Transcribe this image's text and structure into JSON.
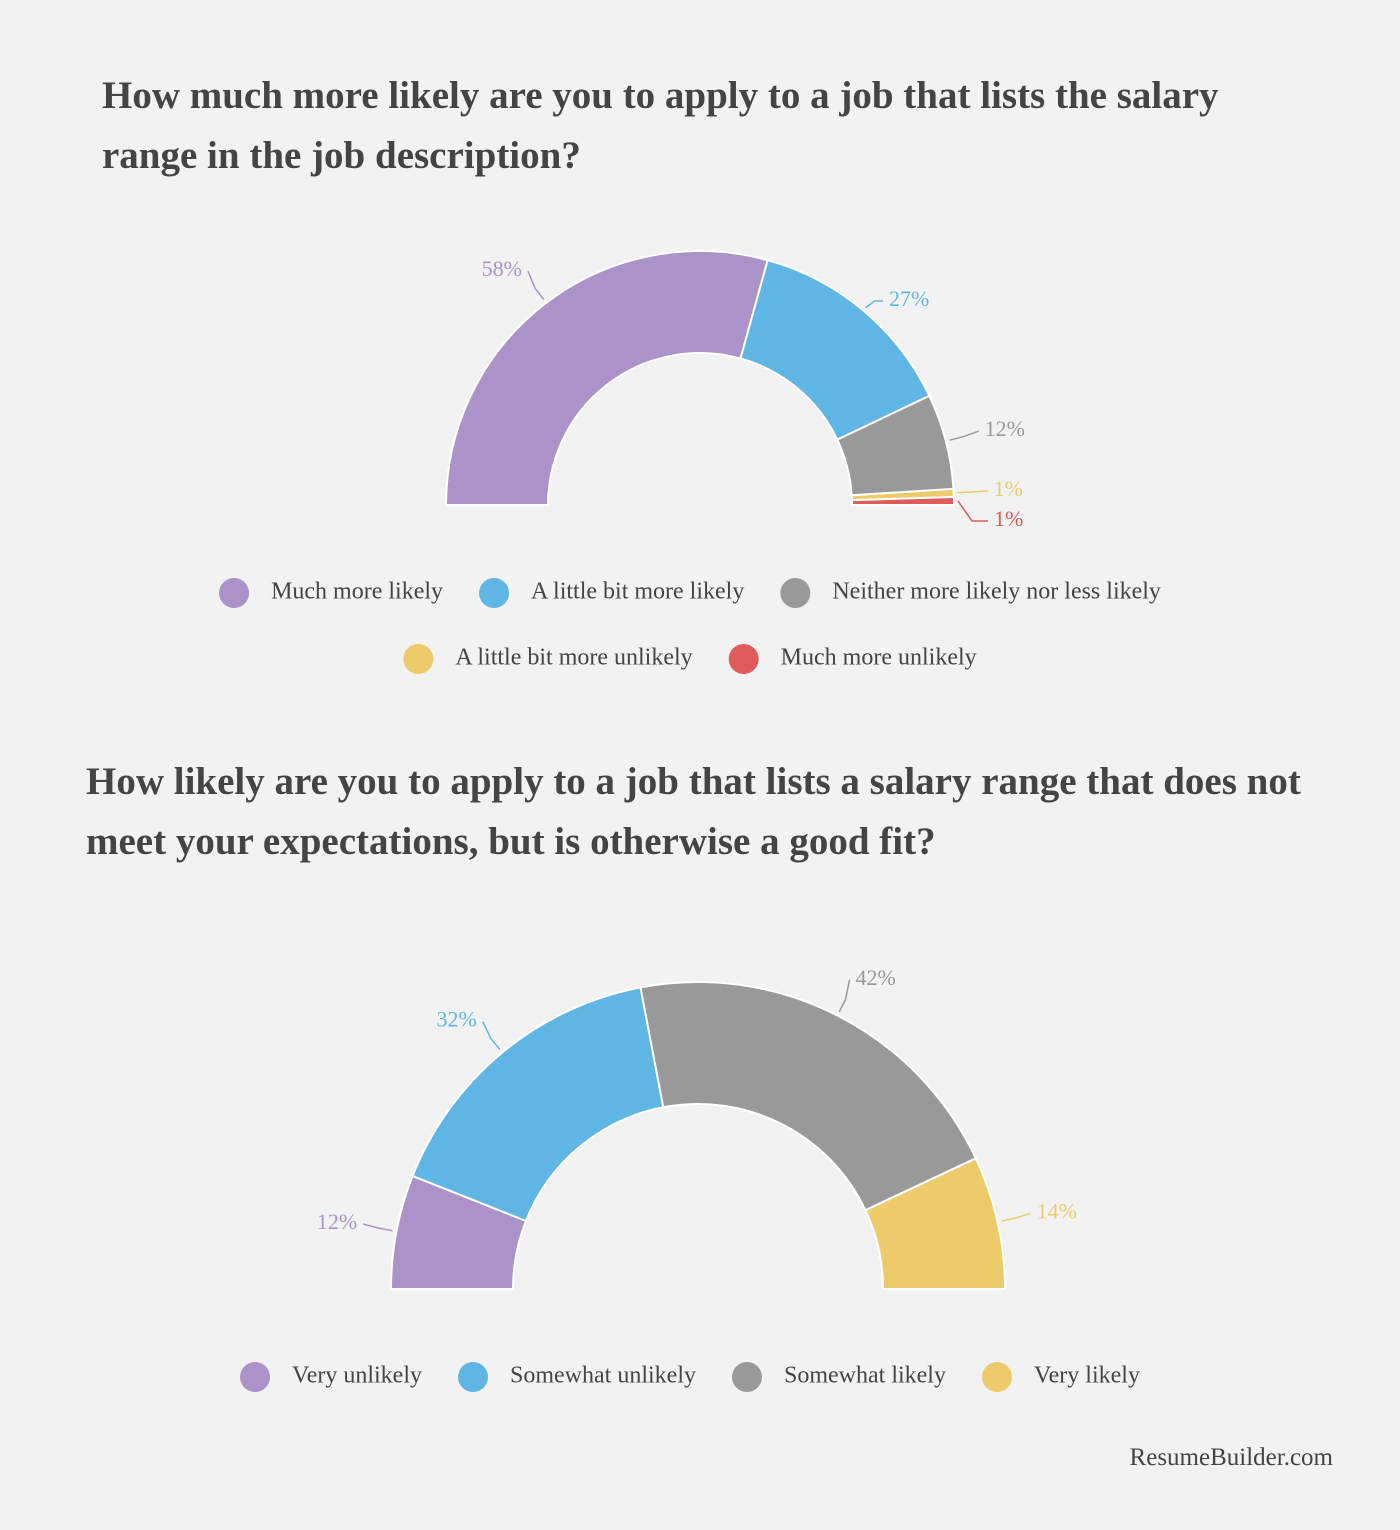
{
  "chart_data": [
    {
      "type": "pie",
      "title": "How much more likely are you to apply to a job that lists the salary range in the job description?",
      "categories": [
        "Much more likely",
        "A little bit more likely",
        "Neither more likely nor less likely",
        "A little bit more unlikely",
        "Much more unlikely"
      ],
      "values": [
        58,
        27,
        12,
        1,
        1
      ],
      "value_labels": [
        "58%",
        "27%",
        "12%",
        "1%",
        "1%"
      ],
      "colors": [
        "#ab92c8",
        "#5fb6e4",
        "#999999",
        "#eecb6a",
        "#e05b5b"
      ]
    },
    {
      "type": "pie",
      "title": "How likely are you to apply to a job that lists a salary range that does not meet your expectations, but is otherwise a good fit?",
      "categories": [
        "Very unlikely",
        "Somewhat unlikely",
        "Somewhat likely",
        "Very likely"
      ],
      "values": [
        12,
        32,
        42,
        14
      ],
      "value_labels": [
        "12%",
        "32%",
        "42%",
        "14%"
      ],
      "colors": [
        "#ab92c8",
        "#5fb6e4",
        "#999999",
        "#eecb6a"
      ]
    }
  ],
  "source": "ResumeBuilder.com"
}
